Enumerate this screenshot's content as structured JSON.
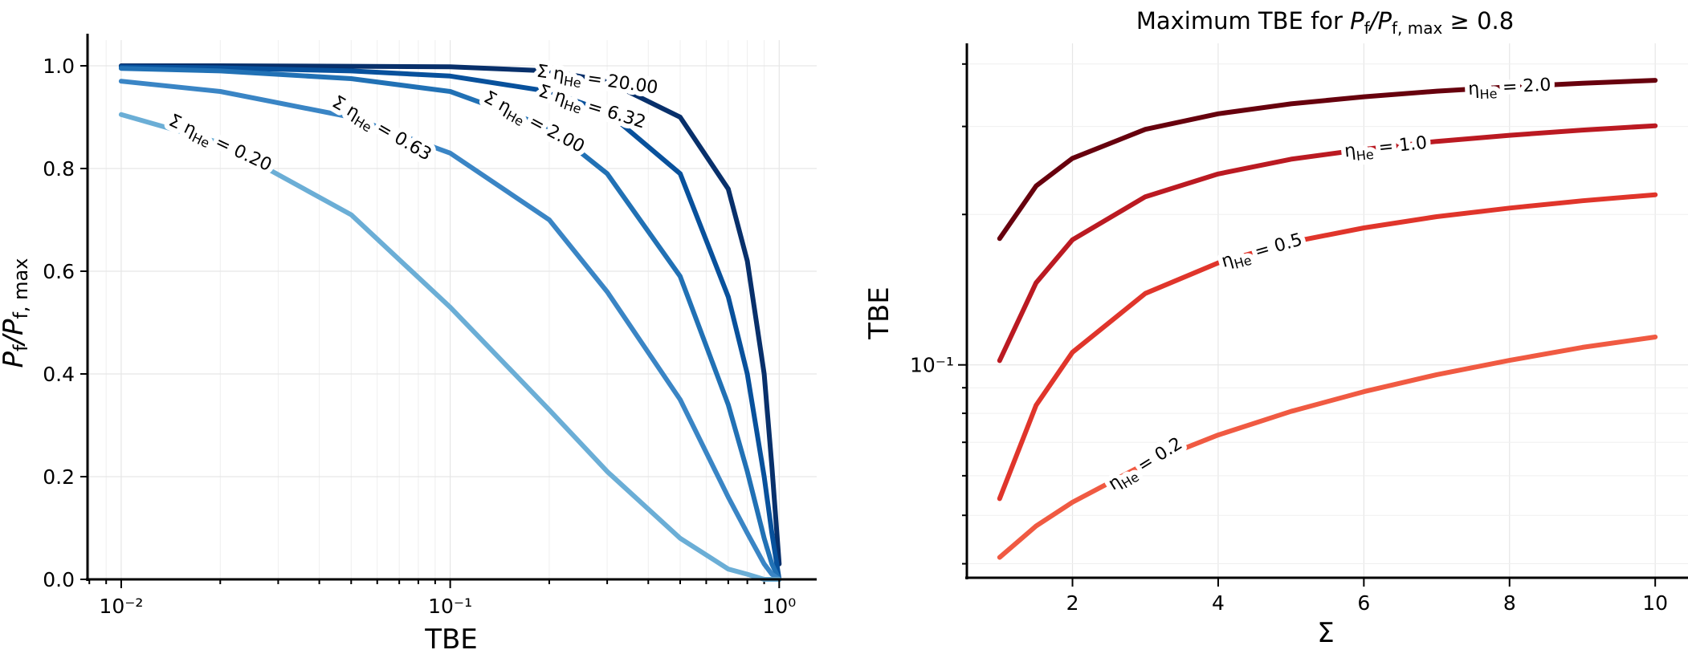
{
  "chart_data": [
    {
      "type": "line",
      "title": "",
      "xlabel": "TBE",
      "ylabel": "P_f/P_f,max",
      "xscale": "log",
      "xlim": [
        0.0079,
        1.3
      ],
      "ylim": [
        0.0,
        1.05
      ],
      "grid": true,
      "legend": "none (inline curve labels)",
      "xticks": [
        "10⁻²",
        "10⁻¹",
        "10⁰"
      ],
      "yticks": [
        "0.0",
        "0.2",
        "0.4",
        "0.6",
        "0.8",
        "1.0"
      ],
      "x": [
        0.01,
        0.02,
        0.05,
        0.1,
        0.2,
        0.3,
        0.5,
        0.7,
        0.8,
        0.9,
        0.95,
        1.0
      ],
      "series": [
        {
          "name": "Σ η_He = 20.00",
          "label_text": "Σ ηHe = 20.00",
          "color": "#08306b",
          "values": [
            1.0,
            1.0,
            0.999,
            0.998,
            0.99,
            0.97,
            0.9,
            0.76,
            0.62,
            0.4,
            0.22,
            0.03
          ]
        },
        {
          "name": "Σ η_He = 6.32",
          "label_text": "Σ ηHe = 6.32",
          "color": "#08519c",
          "values": [
            0.998,
            0.996,
            0.99,
            0.98,
            0.95,
            0.91,
            0.79,
            0.55,
            0.4,
            0.2,
            0.09,
            0.0
          ]
        },
        {
          "name": "Σ η_He = 2.00",
          "label_text": "Σ ηHe = 2.00",
          "color": "#2171b5",
          "values": [
            0.995,
            0.99,
            0.975,
            0.95,
            0.88,
            0.79,
            0.59,
            0.34,
            0.21,
            0.08,
            0.03,
            0.0
          ]
        },
        {
          "name": "Σ η_He = 0.63",
          "label_text": "Σ ηHe = 0.63",
          "color": "#3a85c5",
          "values": [
            0.97,
            0.95,
            0.9,
            0.83,
            0.7,
            0.56,
            0.35,
            0.16,
            0.09,
            0.03,
            0.01,
            0.0
          ]
        },
        {
          "name": "Σ η_He = 0.20",
          "label_text": "Σ ηHe = 0.20",
          "color": "#6baed6",
          "values": [
            0.905,
            0.85,
            0.71,
            0.53,
            0.33,
            0.21,
            0.08,
            0.02,
            0.01,
            0.0,
            0.0,
            0.0
          ]
        }
      ]
    },
    {
      "type": "line",
      "title": "Maximum TBE for P_f/P_f,max ≥ 0.8",
      "title_prefix": "Maximum TBE for ",
      "title_math": "P_f/P_f,max ≥ 0.8",
      "xlabel": "Σ",
      "ylabel": "TBE",
      "yscale": "log",
      "xlim": [
        0.55,
        10.45
      ],
      "ylim": [
        0.0375,
        0.44
      ],
      "grid": true,
      "legend": "none (inline curve labels)",
      "xticks": [
        "2",
        "4",
        "6",
        "8",
        "10"
      ],
      "yticks": [
        "10⁻¹"
      ],
      "x": [
        1,
        1.5,
        2,
        3,
        4,
        5,
        6,
        7,
        8,
        9,
        10
      ],
      "series": [
        {
          "name": "η_He = 2.0",
          "label_text": "ηHe = 2.0",
          "color": "#67000d",
          "values": [
            0.179,
            0.228,
            0.259,
            0.296,
            0.318,
            0.333,
            0.344,
            0.353,
            0.36,
            0.366,
            0.371
          ]
        },
        {
          "name": "η_He = 1.0",
          "label_text": "ηHe = 1.0",
          "color": "#bb1a22",
          "values": [
            0.102,
            0.146,
            0.178,
            0.217,
            0.241,
            0.258,
            0.27,
            0.28,
            0.288,
            0.295,
            0.301
          ]
        },
        {
          "name": "η_He = 0.5",
          "label_text": "ηHe = 0.5",
          "color": "#e0352b",
          "values": [
            0.054,
            0.083,
            0.106,
            0.139,
            0.16,
            0.176,
            0.188,
            0.198,
            0.206,
            0.213,
            0.219
          ]
        },
        {
          "name": "η_He = 0.2",
          "label_text": "ηHe = 0.2",
          "color": "#f05a42",
          "values": [
            0.0412,
            0.0476,
            0.0531,
            0.0634,
            0.0724,
            0.0807,
            0.0884,
            0.0956,
            0.1021,
            0.1084,
            0.1137
          ]
        }
      ]
    }
  ]
}
